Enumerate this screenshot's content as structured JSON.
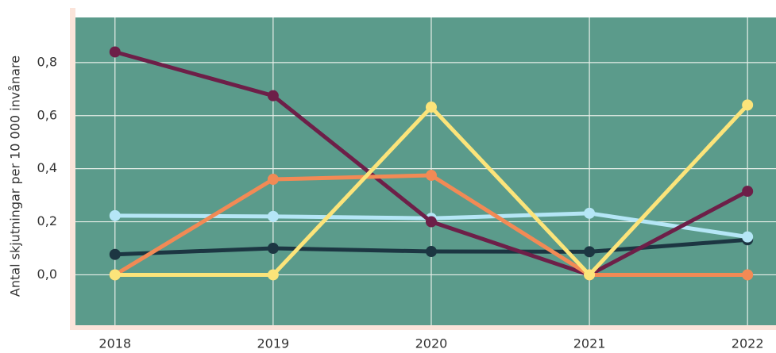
{
  "chart_data": {
    "type": "line",
    "y_label": "Antal skjutningar per 10 000 invånare",
    "x": [
      2018,
      2019,
      2020,
      2021,
      2022
    ],
    "xlim": [
      2017.75,
      2022.18
    ],
    "xticks": [
      2018,
      2019,
      2020,
      2021,
      2022
    ],
    "ylim": [
      -0.19,
      0.97
    ],
    "yticks": [
      {
        "value": 0,
        "label": "0,0"
      },
      {
        "value": 0.2,
        "label": "0,2"
      },
      {
        "value": 0.4,
        "label": "0,4"
      },
      {
        "value": 0.6,
        "label": "0,6"
      },
      {
        "value": 0.8,
        "label": "0,8"
      }
    ],
    "grid": true,
    "series": [
      {
        "color": "#1c3642",
        "values": [
          0.077,
          0.1,
          0.088,
          0.087,
          0.132
        ]
      },
      {
        "color": "#b5e6f6",
        "values": [
          0.223,
          0.22,
          0.213,
          0.232,
          0.143
        ]
      },
      {
        "color": "#6d1f48",
        "values": [
          0.84,
          0.675,
          0.2,
          0,
          0.315
        ]
      },
      {
        "color": "#f28a55",
        "values": [
          0,
          0.36,
          0.375,
          0,
          0
        ]
      },
      {
        "color": "#fce47a",
        "values": [
          0,
          0,
          0.632,
          0,
          0.64
        ]
      }
    ]
  }
}
